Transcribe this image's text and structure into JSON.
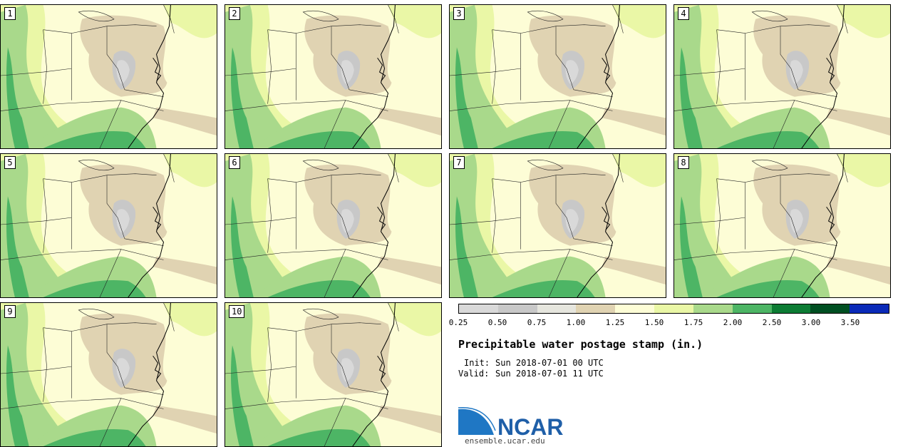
{
  "panels": [
    {
      "label": "1"
    },
    {
      "label": "2"
    },
    {
      "label": "3"
    },
    {
      "label": "4"
    },
    {
      "label": "5"
    },
    {
      "label": "6"
    },
    {
      "label": "7"
    },
    {
      "label": "8"
    },
    {
      "label": "9"
    },
    {
      "label": "10"
    }
  ],
  "colorbar": {
    "colors": [
      "#d9d9d9",
      "#c8c8c8",
      "#e6e6de",
      "#e0d3b2",
      "#fdfdd6",
      "#eaf7a6",
      "#a9d98b",
      "#4db565",
      "#0d7c34",
      "#004f22",
      "#0a2ab8"
    ],
    "ticks": [
      "0.25",
      "0.50",
      "0.75",
      "1.00",
      "1.25",
      "1.50",
      "1.75",
      "2.00",
      "2.50",
      "3.00",
      "3.50"
    ]
  },
  "title": "Precipitable water postage stamp (in.)",
  "init_label": "Init:",
  "init_value": "Sun 2018-07-01 00 UTC",
  "valid_label": "Valid:",
  "valid_value": "Sun 2018-07-01 11 UTC",
  "logo": {
    "text": "NCAR",
    "url": "ensemble.ucar.edu",
    "color": "#1f5fa8"
  }
}
